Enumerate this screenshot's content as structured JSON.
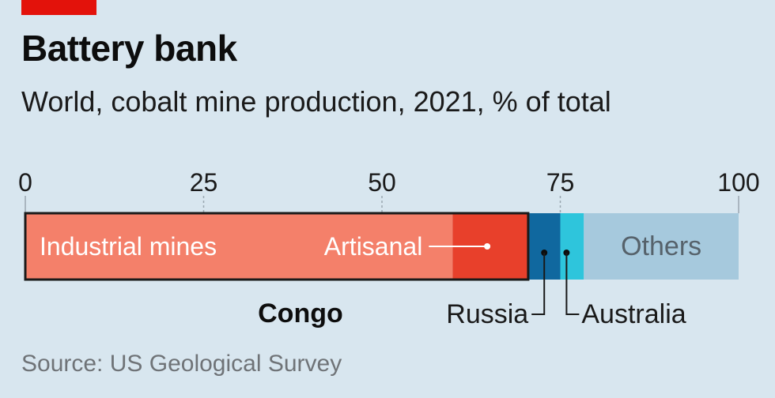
{
  "header": {
    "title": "Battery bank",
    "subtitle": "World, cobalt mine production, 2021, % of total"
  },
  "footer": {
    "source": "Source: US Geological Survey"
  },
  "colors": {
    "background": "#d8e6ef",
    "accent_tag": "#e3120b",
    "congo_industrial": "#f4806a",
    "congo_artisanal": "#e8402b",
    "russia": "#10689f",
    "australia": "#2ec5dc",
    "others": "#a6c9dd"
  },
  "chart_data": {
    "type": "bar",
    "orientation": "horizontal-stacked",
    "xlim": [
      0,
      100
    ],
    "x_ticks": [
      0,
      25,
      50,
      75,
      100
    ],
    "unit": "% of total",
    "segments": [
      {
        "name": "Industrial mines",
        "group": "Congo",
        "value": 59.9,
        "color": "#f4806a"
      },
      {
        "name": "Artisanal",
        "group": "Congo",
        "value": 10.6,
        "color": "#e8402b"
      },
      {
        "name": "Russia",
        "value": 4.5,
        "color": "#10689f"
      },
      {
        "name": "Australia",
        "value": 3.3,
        "color": "#2ec5dc"
      },
      {
        "name": "Others",
        "value": 21.7,
        "color": "#a6c9dd"
      }
    ],
    "group_labels": {
      "congo": "Congo"
    }
  }
}
